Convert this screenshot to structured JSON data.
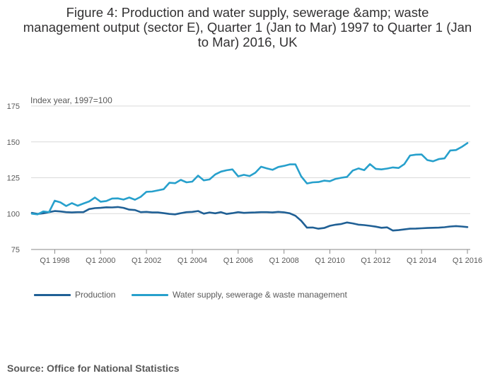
{
  "chart_data": {
    "type": "line",
    "title_lines": [
      "Figure 4: Production and water supply, sewerage &amp; waste",
      "management output (sector E), Quarter 1 (Jan to Mar) 1997 to Quarter 1 (Jan",
      "to Mar) 2016, UK"
    ],
    "ylabel": "Index year, 1997=100",
    "ylim": [
      75,
      175
    ],
    "yticks": [
      75,
      100,
      125,
      150,
      175
    ],
    "x_tick_labels": [
      "Q1 1998",
      "Q1 2000",
      "Q1 2002",
      "Q1 2004",
      "Q1 2006",
      "Q1 2008",
      "Q1 2010",
      "Q1 2012",
      "Q1 2014",
      "Q1 2016"
    ],
    "x_start": "Q1 1997",
    "x_end": "Q1 2016",
    "grid": true,
    "legend_position": "bottom-left",
    "series": [
      {
        "name": "Production",
        "color": "#206095",
        "values": [
          100.5,
          99.8,
          100.2,
          101.0,
          101.8,
          101.5,
          101.0,
          100.8,
          101.0,
          101.0,
          103.2,
          103.8,
          104.0,
          104.4,
          104.3,
          104.6,
          104.0,
          102.8,
          102.5,
          101.0,
          101.2,
          100.8,
          100.8,
          100.3,
          99.8,
          99.5,
          100.3,
          101.0,
          101.2,
          101.8,
          100.0,
          100.8,
          100.2,
          101.0,
          99.8,
          100.3,
          101.0,
          100.5,
          100.7,
          100.8,
          101.0,
          101.0,
          100.8,
          101.2,
          100.9,
          100.2,
          98.5,
          95.0,
          90.2,
          90.3,
          89.5,
          90.0,
          91.5,
          92.3,
          92.8,
          93.8,
          93.2,
          92.3,
          92.0,
          91.5,
          90.9,
          90.1,
          90.4,
          88.2,
          88.5,
          89.0,
          89.5,
          89.6,
          89.8,
          90.0,
          90.1,
          90.2,
          90.5,
          91.0,
          91.3,
          91.0,
          90.6
        ]
      },
      {
        "name": "Water supply, sewerage & waste management",
        "color": "#27a0cc",
        "values": [
          100.0,
          99.5,
          101.5,
          101.0,
          109.0,
          107.8,
          105.3,
          107.3,
          105.5,
          107.0,
          108.5,
          111.2,
          108.3,
          108.8,
          110.5,
          110.6,
          109.8,
          111.2,
          109.7,
          111.7,
          115.2,
          115.4,
          116.2,
          117.0,
          121.5,
          121.2,
          123.5,
          121.8,
          122.3,
          126.5,
          123.2,
          123.8,
          127.3,
          129.3,
          130.2,
          130.8,
          126.0,
          127.0,
          126.2,
          128.5,
          132.7,
          131.5,
          130.5,
          132.5,
          133.3,
          134.3,
          134.3,
          126.0,
          121.0,
          121.8,
          122.0,
          123.0,
          122.6,
          124.2,
          125.0,
          125.6,
          130.0,
          131.5,
          130.3,
          134.5,
          131.2,
          130.8,
          131.4,
          132.2,
          131.8,
          134.5,
          140.5,
          141.1,
          141.2,
          137.3,
          136.5,
          138.0,
          138.5,
          144.0,
          144.3,
          146.5,
          149.2
        ]
      }
    ]
  },
  "source": "Source: Office for National Statistics"
}
